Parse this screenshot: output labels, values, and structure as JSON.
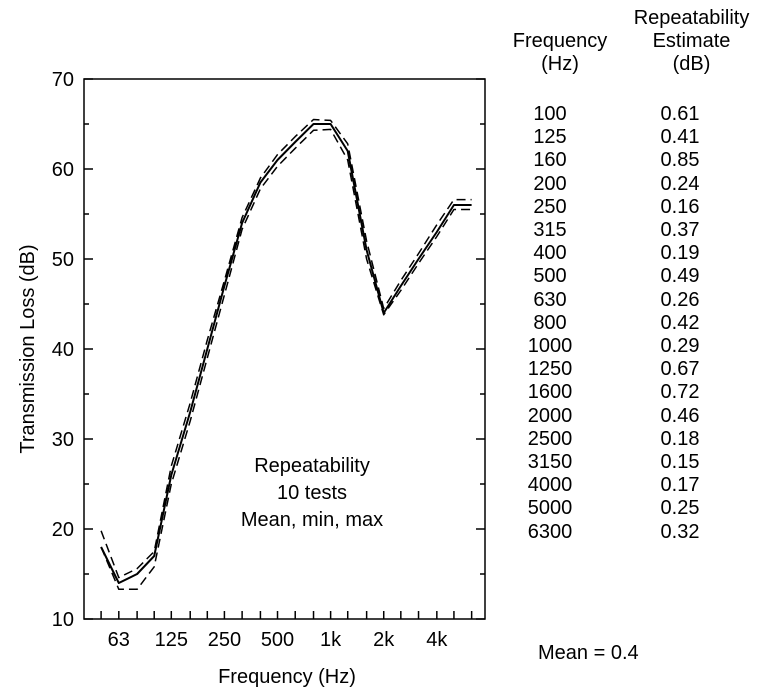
{
  "chart_data": {
    "type": "line",
    "ylabel": "Transmission Loss (dB)",
    "xlabel": "Frequency (Hz)",
    "ylim": [
      10,
      70
    ],
    "yticks": [
      10,
      20,
      30,
      40,
      50,
      60,
      70
    ],
    "xscale": "log",
    "xlim": [
      40,
      7500
    ],
    "xticks": [
      {
        "value": 63,
        "label": "63"
      },
      {
        "value": 125,
        "label": "125"
      },
      {
        "value": 250,
        "label": "250"
      },
      {
        "value": 500,
        "label": "500"
      },
      {
        "value": 1000,
        "label": "1k"
      },
      {
        "value": 2000,
        "label": "2k"
      },
      {
        "value": 4000,
        "label": "4k"
      }
    ],
    "grid": false,
    "x": [
      50,
      63,
      80,
      100,
      125,
      160,
      200,
      250,
      315,
      400,
      500,
      630,
      800,
      1000,
      1250,
      1600,
      2000,
      2500,
      3150,
      4000,
      5000,
      6300
    ],
    "series": [
      {
        "style": "mean",
        "values": [
          18.0,
          14.0,
          15.0,
          17.0,
          26.0,
          33.0,
          40.0,
          47.0,
          54.0,
          58.5,
          61.0,
          63.0,
          65.0,
          65.0,
          62.0,
          51.0,
          44.0,
          47.0,
          50.0,
          53.0,
          56.0,
          56.0
        ]
      },
      {
        "style": "min",
        "values": [
          18.0,
          13.3,
          13.3,
          15.8,
          25.0,
          32.0,
          39.0,
          46.0,
          53.3,
          57.8,
          60.3,
          62.3,
          64.3,
          64.4,
          61.0,
          50.0,
          43.8,
          46.5,
          49.5,
          52.5,
          55.5,
          55.5
        ]
      },
      {
        "style": "max",
        "values": [
          19.8,
          14.6,
          15.6,
          17.5,
          27.0,
          34.0,
          41.0,
          47.6,
          54.6,
          59.0,
          61.6,
          63.6,
          65.5,
          65.4,
          62.8,
          52.0,
          44.5,
          47.6,
          50.6,
          53.8,
          56.6,
          56.6
        ]
      }
    ],
    "annotation": [
      "Repeatability",
      "10 tests",
      "Mean, min, max"
    ]
  },
  "table": {
    "header_freq": [
      "Frequency",
      "(Hz)"
    ],
    "header_rep": [
      "Repeatability",
      "Estimate",
      "(dB)"
    ],
    "rows": [
      {
        "freq": "100",
        "value": "0.61"
      },
      {
        "freq": "125",
        "value": "0.41"
      },
      {
        "freq": "160",
        "value": "0.85"
      },
      {
        "freq": "200",
        "value": "0.24"
      },
      {
        "freq": "250",
        "value": "0.16"
      },
      {
        "freq": "315",
        "value": "0.37"
      },
      {
        "freq": "400",
        "value": "0.19"
      },
      {
        "freq": "500",
        "value": "0.49"
      },
      {
        "freq": "630",
        "value": "0.26"
      },
      {
        "freq": "800",
        "value": "0.42"
      },
      {
        "freq": "1000",
        "value": "0.29"
      },
      {
        "freq": "1250",
        "value": "0.67"
      },
      {
        "freq": "1600",
        "value": "0.72"
      },
      {
        "freq": "2000",
        "value": "0.46"
      },
      {
        "freq": "2500",
        "value": "0.18"
      },
      {
        "freq": "3150",
        "value": "0.15"
      },
      {
        "freq": "4000",
        "value": "0.17"
      },
      {
        "freq": "5000",
        "value": "0.25"
      },
      {
        "freq": "6300",
        "value": "0.32"
      }
    ],
    "mean_text": "Mean = 0.4"
  }
}
